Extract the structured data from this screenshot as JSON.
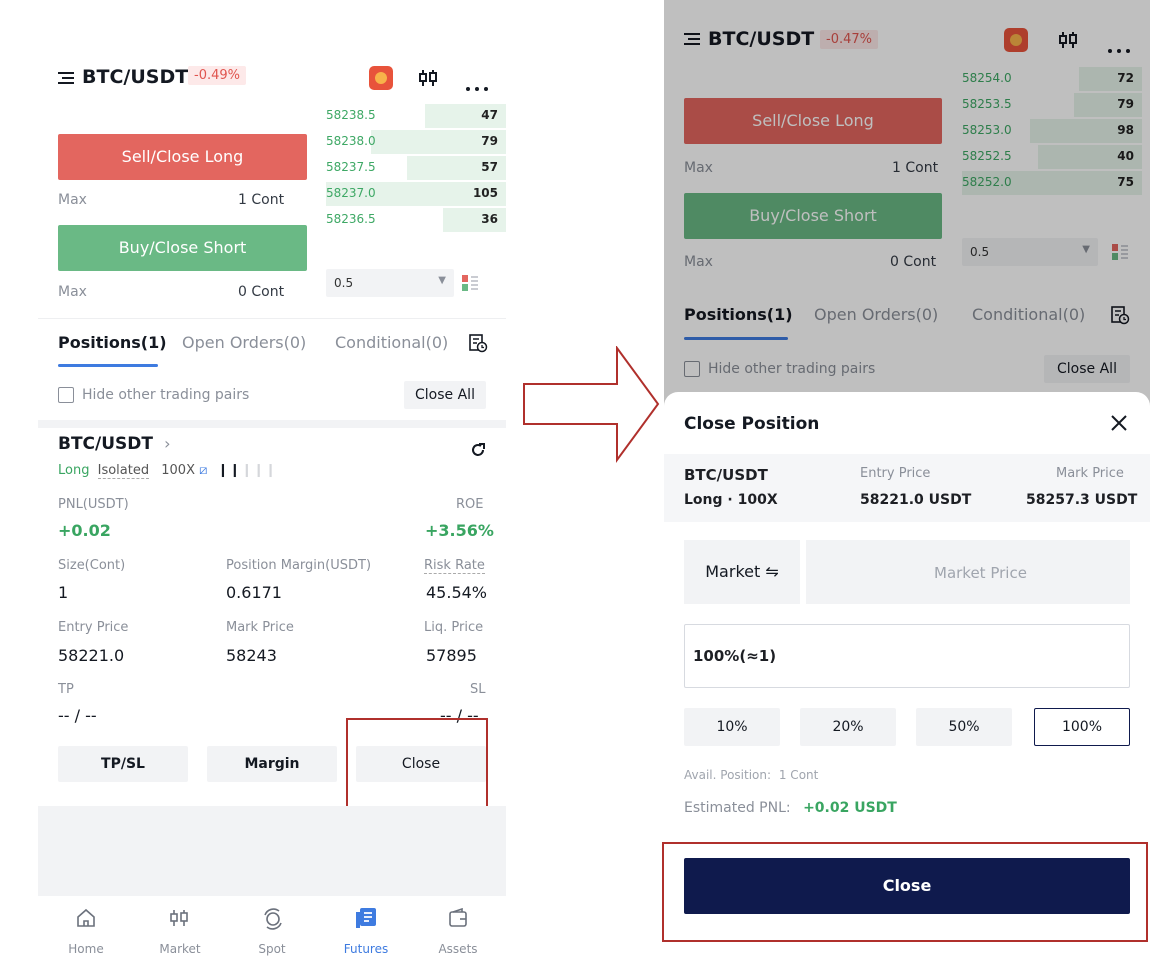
{
  "left": {
    "pair": "BTC/USDT",
    "change": "-0.49%",
    "sell_label": "Sell/Close Long",
    "buy_label": "Buy/Close Short",
    "max_label": "Max",
    "sell_max": "1 Cont",
    "buy_max": "0 Cont",
    "orderbook": [
      {
        "price": "58238.5",
        "qty": "47",
        "depth": 0.45
      },
      {
        "price": "58238.0",
        "qty": "79",
        "depth": 0.75
      },
      {
        "price": "58237.5",
        "qty": "57",
        "depth": 0.55
      },
      {
        "price": "58237.0",
        "qty": "105",
        "depth": 1.0
      },
      {
        "price": "58236.5",
        "qty": "36",
        "depth": 0.35
      }
    ],
    "depth_select": "0.5",
    "tabs": [
      "Positions(1)",
      "Open Orders(0)",
      "Conditional(0)"
    ],
    "hide_pairs": "Hide other trading pairs",
    "close_all": "Close All",
    "position": {
      "pair": "BTC/USDT",
      "side": "Long",
      "margin_mode": "Isolated",
      "leverage": "100X",
      "pnl_label": "PNL(USDT)",
      "pnl_value": "+0.02",
      "roe_label": "ROE",
      "roe_value": "+3.56%",
      "size_label": "Size(Cont)",
      "size_value": "1",
      "margin_label": "Position Margin(USDT)",
      "margin_value": "0.6171",
      "risk_label": "Risk Rate",
      "risk_value": "45.54%",
      "entry_label": "Entry Price",
      "entry_value": "58221.0",
      "mark_label": "Mark Price",
      "mark_value": "58243",
      "liq_label": "Liq. Price",
      "liq_value": "57895",
      "tp_label": "TP",
      "tp_value": "-- / --",
      "sl_label": "SL",
      "sl_value": "-- / --"
    },
    "actions": [
      "TP/SL",
      "Margin",
      "Close"
    ],
    "nav": [
      "Home",
      "Market",
      "Spot",
      "Futures",
      "Assets"
    ]
  },
  "right": {
    "pair": "BTC/USDT",
    "change": "-0.47%",
    "sell_label": "Sell/Close Long",
    "buy_label": "Buy/Close Short",
    "max_label": "Max",
    "sell_max": "1 Cont",
    "buy_max": "0 Cont",
    "orderbook": [
      {
        "price": "58254.0",
        "qty": "72",
        "depth": 0.35
      },
      {
        "price": "58253.5",
        "qty": "79",
        "depth": 0.38
      },
      {
        "price": "58253.0",
        "qty": "98",
        "depth": 0.62
      },
      {
        "price": "58252.5",
        "qty": "40",
        "depth": 0.58
      },
      {
        "price": "58252.0",
        "qty": "75",
        "depth": 1.0
      }
    ],
    "depth_select": "0.5",
    "tabs": [
      "Positions(1)",
      "Open Orders(0)",
      "Conditional(0)"
    ],
    "hide_pairs": "Hide other trading pairs",
    "close_all": "Close All",
    "modal": {
      "title": "Close Position",
      "pair": "BTC/USDT",
      "side_lev": "Long · 100X",
      "entry_label": "Entry Price",
      "entry_value": "58221.0 USDT",
      "mark_label": "Mark Price",
      "mark_value": "58257.3 USDT",
      "order_type": "Market ⇋",
      "price_placeholder": "Market Price",
      "amount": "100%(≈1)",
      "percents": [
        "10%",
        "20%",
        "50%",
        "100%"
      ],
      "avail_label": "Avail. Position:",
      "avail_value": "1 Cont",
      "pnl_label": "Estimated PNL:",
      "pnl_value": "+0.02 USDT",
      "close_label": "Close"
    }
  },
  "colors": {
    "sell": "#e3665f",
    "buy": "#6ab985",
    "accent": "#3e7be0",
    "navy": "#0f1a4d",
    "highlight": "#b0302c"
  }
}
